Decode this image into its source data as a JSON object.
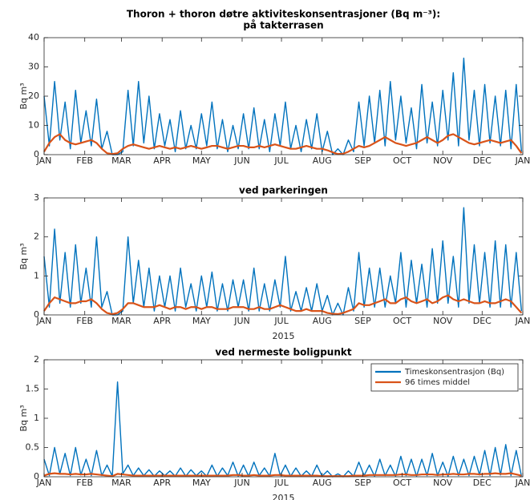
{
  "chart_data": [
    {
      "type": "line",
      "title": [
        "Thoron + thoron døtre  aktiviteskonsentrasjoner (Bq m⁻³):",
        "på takterrasen"
      ],
      "ylabel": "Bq m³",
      "x": [
        0,
        4,
        8,
        12,
        16,
        20,
        24,
        28,
        32,
        36,
        40,
        44,
        48,
        52,
        56,
        60,
        64,
        68,
        72,
        76,
        80,
        84,
        88,
        92,
        96,
        100,
        104,
        108,
        112,
        116,
        120,
        124,
        128,
        132,
        136,
        140,
        144,
        148,
        152,
        156,
        160,
        164,
        168,
        172,
        176,
        180,
        184,
        188,
        192,
        196,
        200,
        204,
        208,
        212,
        216,
        220,
        224,
        228,
        232,
        236,
        240,
        244,
        248,
        252,
        256,
        260,
        264,
        268,
        272,
        276,
        280,
        284,
        288,
        292,
        296,
        300,
        304,
        308,
        312,
        316,
        320,
        324,
        328,
        332,
        336,
        340,
        344,
        348,
        352,
        356,
        360,
        364
      ],
      "xlim": [
        0,
        365
      ],
      "xticks": [
        {
          "value": 0,
          "label": "JAN"
        },
        {
          "value": 31,
          "label": "FEB"
        },
        {
          "value": 59,
          "label": "MAR"
        },
        {
          "value": 90,
          "label": "APR"
        },
        {
          "value": 120,
          "label": "MAY"
        },
        {
          "value": 151,
          "label": "JUN"
        },
        {
          "value": 181,
          "label": "JUL"
        },
        {
          "value": 212,
          "label": "AUG"
        },
        {
          "value": 243,
          "label": "SEP"
        },
        {
          "value": 273,
          "label": "OCT"
        },
        {
          "value": 304,
          "label": "NOV"
        },
        {
          "value": 334,
          "label": "DEC"
        },
        {
          "value": 365,
          "label": "JAN"
        }
      ],
      "ylim": [
        0,
        40
      ],
      "yticks": [
        0,
        10,
        20,
        30,
        40
      ],
      "series": [
        {
          "color": "#0072bd",
          "values": [
            20,
            3,
            25,
            5,
            18,
            2,
            22,
            4,
            15,
            3,
            19,
            2,
            8,
            0,
            0,
            1,
            22,
            3,
            25,
            4,
            20,
            2,
            14,
            3,
            12,
            1,
            15,
            2,
            10,
            2,
            14,
            3,
            18,
            2,
            12,
            1,
            10,
            2,
            14,
            2,
            16,
            2,
            12,
            1,
            14,
            3,
            18,
            2,
            10,
            1,
            12,
            2,
            14,
            1,
            8,
            0,
            2,
            0,
            5,
            1,
            18,
            3,
            20,
            4,
            22,
            3,
            25,
            5,
            20,
            4,
            16,
            2,
            24,
            4,
            18,
            3,
            22,
            5,
            28,
            3,
            33,
            5,
            22,
            3,
            24,
            4,
            20,
            3,
            22,
            2,
            24,
            1
          ]
        },
        {
          "color": "#d95319",
          "values": [
            1,
            4,
            6,
            7,
            5,
            4,
            3.5,
            4,
            4.5,
            5,
            4,
            2,
            0.5,
            0.2,
            0.5,
            2,
            3,
            3.5,
            3,
            2.5,
            2,
            2.5,
            3,
            2.5,
            2,
            2.5,
            2,
            2.5,
            3,
            2.5,
            2,
            2.5,
            3,
            3,
            2.5,
            2,
            2.5,
            3,
            3,
            2.5,
            2.5,
            3,
            2.5,
            3,
            3.5,
            3,
            2.5,
            2,
            2,
            2.5,
            3,
            2.5,
            2,
            2,
            1.5,
            0.8,
            0.2,
            0.3,
            1,
            2,
            3,
            2.5,
            3,
            4,
            5,
            6,
            5,
            4,
            3.5,
            3,
            3.5,
            4,
            5,
            6,
            5,
            4,
            5,
            6.5,
            7,
            6,
            5,
            4,
            3.5,
            4,
            4.5,
            5,
            4.5,
            4,
            4.5,
            5,
            3,
            0.5
          ]
        }
      ]
    },
    {
      "type": "line",
      "title": [
        "ved parkeringen"
      ],
      "ylabel": "Bq m³",
      "xlabel": "2015",
      "x": [
        0,
        4,
        8,
        12,
        16,
        20,
        24,
        28,
        32,
        36,
        40,
        44,
        48,
        52,
        56,
        60,
        64,
        68,
        72,
        76,
        80,
        84,
        88,
        92,
        96,
        100,
        104,
        108,
        112,
        116,
        120,
        124,
        128,
        132,
        136,
        140,
        144,
        148,
        152,
        156,
        160,
        164,
        168,
        172,
        176,
        180,
        184,
        188,
        192,
        196,
        200,
        204,
        208,
        212,
        216,
        220,
        224,
        228,
        232,
        236,
        240,
        244,
        248,
        252,
        256,
        260,
        264,
        268,
        272,
        276,
        280,
        284,
        288,
        292,
        296,
        300,
        304,
        308,
        312,
        316,
        320,
        324,
        328,
        332,
        336,
        340,
        344,
        348,
        352,
        356,
        360,
        364
      ],
      "xlim": [
        0,
        365
      ],
      "xticks": [
        {
          "value": 0,
          "label": "JAN"
        },
        {
          "value": 31,
          "label": "FEB"
        },
        {
          "value": 59,
          "label": "MAR"
        },
        {
          "value": 90,
          "label": "APR"
        },
        {
          "value": 120,
          "label": "MAY"
        },
        {
          "value": 151,
          "label": "JUN"
        },
        {
          "value": 181,
          "label": "JUL"
        },
        {
          "value": 212,
          "label": "AUG"
        },
        {
          "value": 243,
          "label": "SEP"
        },
        {
          "value": 273,
          "label": "OCT"
        },
        {
          "value": 304,
          "label": "NOV"
        },
        {
          "value": 334,
          "label": "DEC"
        },
        {
          "value": 365,
          "label": "JAN"
        }
      ],
      "ylim": [
        0,
        3
      ],
      "yticks": [
        0,
        1,
        2,
        3
      ],
      "series": [
        {
          "color": "#0072bd",
          "values": [
            1.5,
            0.2,
            2.2,
            0.3,
            1.6,
            0.2,
            1.8,
            0.3,
            1.2,
            0.2,
            2.0,
            0.2,
            0.6,
            0,
            0,
            0.1,
            2.0,
            0.3,
            1.4,
            0.2,
            1.2,
            0.1,
            1.0,
            0.2,
            1.0,
            0.1,
            1.2,
            0.2,
            0.8,
            0.1,
            1.0,
            0.2,
            1.1,
            0.1,
            0.8,
            0.1,
            0.9,
            0.2,
            0.9,
            0.1,
            1.2,
            0.1,
            0.8,
            0.1,
            0.9,
            0.2,
            1.5,
            0.1,
            0.6,
            0.1,
            0.7,
            0.1,
            0.8,
            0.1,
            0.5,
            0,
            0.3,
            0,
            0.7,
            0.1,
            1.6,
            0.2,
            1.2,
            0.2,
            1.2,
            0.2,
            1.0,
            0.3,
            1.6,
            0.2,
            1.4,
            0.3,
            1.3,
            0.2,
            1.7,
            0.3,
            1.9,
            0.3,
            1.5,
            0.2,
            2.75,
            0.3,
            1.8,
            0.3,
            1.6,
            0.2,
            1.9,
            0.2,
            1.8,
            0.2,
            1.6,
            0.1
          ]
        },
        {
          "color": "#d95319",
          "values": [
            0.1,
            0.3,
            0.45,
            0.4,
            0.35,
            0.3,
            0.3,
            0.35,
            0.35,
            0.4,
            0.3,
            0.15,
            0.05,
            0.02,
            0.05,
            0.15,
            0.3,
            0.3,
            0.25,
            0.2,
            0.2,
            0.2,
            0.25,
            0.2,
            0.15,
            0.2,
            0.2,
            0.15,
            0.2,
            0.2,
            0.15,
            0.2,
            0.2,
            0.15,
            0.15,
            0.15,
            0.2,
            0.2,
            0.2,
            0.15,
            0.15,
            0.2,
            0.15,
            0.15,
            0.2,
            0.25,
            0.2,
            0.15,
            0.1,
            0.1,
            0.15,
            0.1,
            0.1,
            0.1,
            0.05,
            0.03,
            0.02,
            0.05,
            0.1,
            0.15,
            0.3,
            0.25,
            0.25,
            0.3,
            0.35,
            0.4,
            0.3,
            0.3,
            0.4,
            0.45,
            0.35,
            0.3,
            0.35,
            0.4,
            0.3,
            0.35,
            0.45,
            0.5,
            0.4,
            0.35,
            0.4,
            0.35,
            0.3,
            0.3,
            0.35,
            0.3,
            0.3,
            0.35,
            0.4,
            0.35,
            0.2,
            0.05
          ]
        }
      ]
    },
    {
      "type": "line",
      "title": [
        "ved nermeste boligpunkt"
      ],
      "ylabel": "Bq m³",
      "xlabel": "2015",
      "legend": "northeast",
      "x": [
        0,
        4,
        8,
        12,
        16,
        20,
        24,
        28,
        32,
        36,
        40,
        44,
        48,
        52,
        56,
        60,
        64,
        68,
        72,
        76,
        80,
        84,
        88,
        92,
        96,
        100,
        104,
        108,
        112,
        116,
        120,
        124,
        128,
        132,
        136,
        140,
        144,
        148,
        152,
        156,
        160,
        164,
        168,
        172,
        176,
        180,
        184,
        188,
        192,
        196,
        200,
        204,
        208,
        212,
        216,
        220,
        224,
        228,
        232,
        236,
        240,
        244,
        248,
        252,
        256,
        260,
        264,
        268,
        272,
        276,
        280,
        284,
        288,
        292,
        296,
        300,
        304,
        308,
        312,
        316,
        320,
        324,
        328,
        332,
        336,
        340,
        344,
        348,
        352,
        356,
        360,
        364
      ],
      "xlim": [
        0,
        365
      ],
      "xticks": [
        {
          "value": 0,
          "label": "JAN"
        },
        {
          "value": 31,
          "label": "FEB"
        },
        {
          "value": 59,
          "label": "MAR"
        },
        {
          "value": 90,
          "label": "APR"
        },
        {
          "value": 120,
          "label": "MAY"
        },
        {
          "value": 151,
          "label": "JUN"
        },
        {
          "value": 181,
          "label": "JUL"
        },
        {
          "value": 212,
          "label": "AUG"
        },
        {
          "value": 243,
          "label": "SEP"
        },
        {
          "value": 273,
          "label": "OCT"
        },
        {
          "value": 304,
          "label": "NOV"
        },
        {
          "value": 334,
          "label": "DEC"
        },
        {
          "value": 365,
          "label": "JAN"
        }
      ],
      "ylim": [
        0,
        2
      ],
      "yticks": [
        0,
        0.5,
        1,
        1.5,
        2
      ],
      "series": [
        {
          "name": "Timeskonsentrasjon (Bq)",
          "color": "#0072bd",
          "values": [
            0.3,
            0.02,
            0.5,
            0.05,
            0.4,
            0.02,
            0.5,
            0.03,
            0.3,
            0.02,
            0.45,
            0.02,
            0.2,
            0.01,
            1.62,
            0.05,
            0.2,
            0.02,
            0.15,
            0.02,
            0.12,
            0.01,
            0.1,
            0.02,
            0.1,
            0.01,
            0.15,
            0.01,
            0.12,
            0.02,
            0.1,
            0.01,
            0.2,
            0.01,
            0.15,
            0.02,
            0.25,
            0.01,
            0.2,
            0.01,
            0.25,
            0.02,
            0.15,
            0.01,
            0.4,
            0.02,
            0.2,
            0.01,
            0.15,
            0.01,
            0.1,
            0.01,
            0.2,
            0.01,
            0.1,
            0,
            0.05,
            0,
            0.1,
            0.01,
            0.25,
            0.02,
            0.2,
            0.01,
            0.3,
            0.02,
            0.2,
            0.01,
            0.35,
            0.02,
            0.3,
            0.01,
            0.3,
            0.02,
            0.4,
            0.02,
            0.25,
            0.01,
            0.35,
            0.02,
            0.3,
            0.02,
            0.35,
            0.03,
            0.45,
            0.02,
            0.5,
            0.03,
            0.55,
            0.02,
            0.45,
            0.01
          ]
        },
        {
          "name": "96 times middel",
          "color": "#d95319",
          "values": [
            0.02,
            0.05,
            0.06,
            0.05,
            0.05,
            0.04,
            0.05,
            0.04,
            0.04,
            0.05,
            0.04,
            0.03,
            0.02,
            0.01,
            0.05,
            0.04,
            0.03,
            0.02,
            0.02,
            0.02,
            0.02,
            0.02,
            0.02,
            0.02,
            0.02,
            0.02,
            0.02,
            0.02,
            0.02,
            0.02,
            0.02,
            0.02,
            0.02,
            0.02,
            0.02,
            0.02,
            0.03,
            0.03,
            0.02,
            0.02,
            0.03,
            0.02,
            0.02,
            0.02,
            0.03,
            0.03,
            0.02,
            0.02,
            0.02,
            0.02,
            0.02,
            0.02,
            0.02,
            0.01,
            0.01,
            0.01,
            0.01,
            0.01,
            0.01,
            0.02,
            0.02,
            0.02,
            0.03,
            0.03,
            0.03,
            0.03,
            0.03,
            0.03,
            0.04,
            0.04,
            0.03,
            0.03,
            0.04,
            0.04,
            0.04,
            0.03,
            0.04,
            0.04,
            0.05,
            0.04,
            0.04,
            0.05,
            0.05,
            0.04,
            0.05,
            0.05,
            0.06,
            0.05,
            0.05,
            0.06,
            0.04,
            0.02
          ]
        }
      ]
    }
  ]
}
